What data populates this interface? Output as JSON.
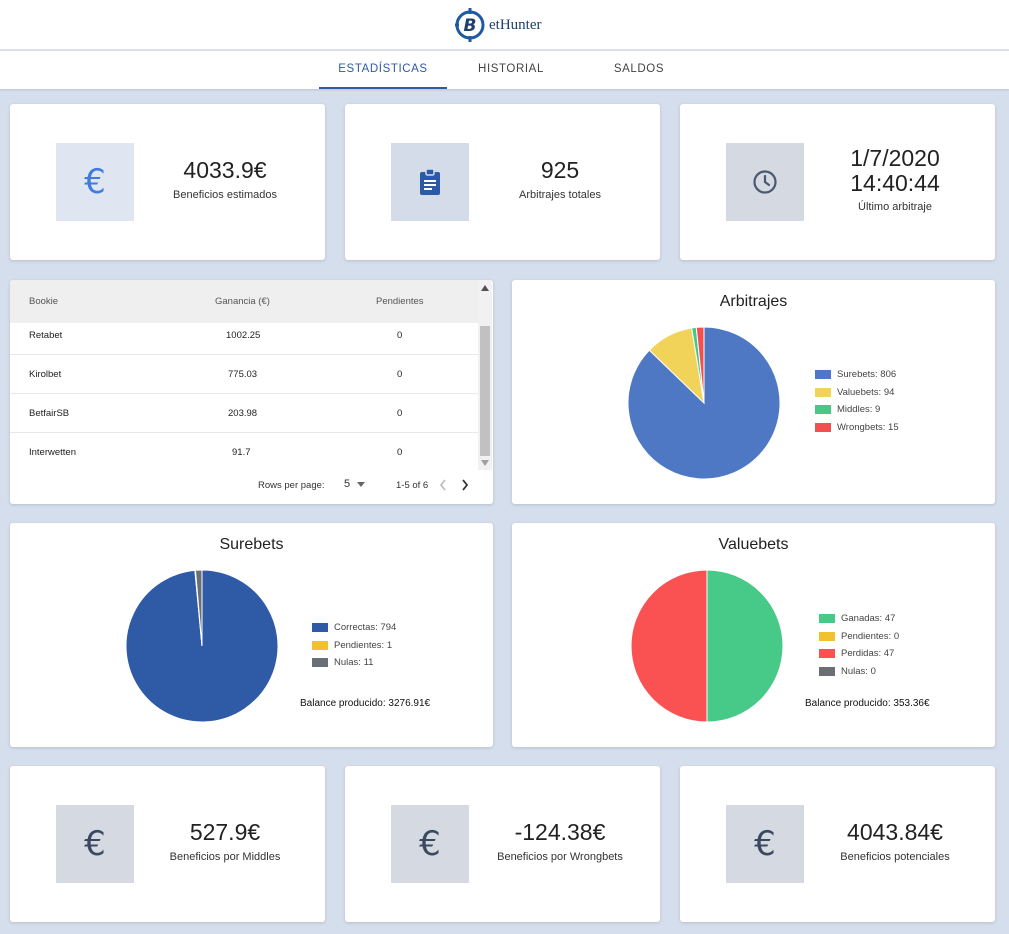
{
  "header": {
    "logo_letter": "B",
    "logo_text": "etHunter"
  },
  "tabs": [
    {
      "label": "ESTADÍSTICAS",
      "active": true
    },
    {
      "label": "HISTORIAL",
      "active": false
    },
    {
      "label": "SALDOS",
      "active": false
    }
  ],
  "top_stats": [
    {
      "icon": "euro-icon",
      "value": "4033.9€",
      "label": "Beneficios estimados",
      "icon_color": "#3f7be0"
    },
    {
      "icon": "clipboard-icon",
      "value": "925",
      "label": "Arbitrajes totales",
      "icon_color": "#2d5aa8"
    },
    {
      "icon": "clock-icon",
      "value_line1": "1/7/2020",
      "value_line2": "14:40:44",
      "label": "Último arbitraje",
      "icon_color": "#4a5870"
    }
  ],
  "bookie_table": {
    "columns": [
      "Bookie",
      "Ganancia (€)",
      "Pendientes"
    ],
    "rows": [
      {
        "bookie": "Retabet",
        "ganancia": "1002.25",
        "pendientes": "0"
      },
      {
        "bookie": "Kirolbet",
        "ganancia": "775.03",
        "pendientes": "0"
      },
      {
        "bookie": "BetfairSB",
        "ganancia": "203.98",
        "pendientes": "0"
      },
      {
        "bookie": "Interwetten",
        "ganancia": "91.7",
        "pendientes": "0"
      }
    ],
    "rows_per_page_label": "Rows per page:",
    "rows_per_page_value": "5",
    "pagination": "1-5 of 6"
  },
  "chart_data": [
    {
      "type": "pie",
      "title": "Arbitrajes",
      "labels": [
        "Surebets",
        "Valuebets",
        "Middles",
        "Wrongbets"
      ],
      "values": [
        806,
        94,
        9,
        15
      ],
      "legend": [
        "Surebets: 806",
        "Valuebets: 94",
        "Middles: 9",
        "Wrongbets: 15"
      ],
      "colors": [
        "#4e78c4",
        "#f2d35a",
        "#46c987",
        "#f25050"
      ]
    },
    {
      "type": "pie",
      "title": "Surebets",
      "labels": [
        "Correctas",
        "Pendientes",
        "Nulas"
      ],
      "values": [
        794,
        1,
        11
      ],
      "legend": [
        "Correctas: 794",
        "Pendientes: 1",
        "Nulas: 11"
      ],
      "colors": [
        "#2e5aa6",
        "#f2c12e",
        "#6a6e75"
      ],
      "balance": "Balance producido: 3276.91€"
    },
    {
      "type": "pie",
      "title": "Valuebets",
      "labels": [
        "Ganadas",
        "Pendientes",
        "Perdidas",
        "Nulas"
      ],
      "values": [
        47,
        0,
        47,
        0
      ],
      "legend": [
        "Ganadas: 47",
        "Pendientes: 0",
        "Perdidas: 47",
        "Nulas: 0"
      ],
      "colors": [
        "#47c987",
        "#f2c12e",
        "#fa5252",
        "#6a6e75"
      ],
      "balance": "Balance producido: 353.36€"
    }
  ],
  "bottom_stats": [
    {
      "icon": "euro-icon",
      "value": "527.9€",
      "label": "Beneficios por Middles",
      "icon_color": "#3a4860"
    },
    {
      "icon": "euro-icon",
      "value": "-124.38€",
      "label": "Beneficios por Wrongbets",
      "icon_color": "#3a4860"
    },
    {
      "icon": "euro-icon",
      "value": "4043.84€",
      "label": "Beneficios potenciales",
      "icon_color": "#3a4860"
    }
  ]
}
